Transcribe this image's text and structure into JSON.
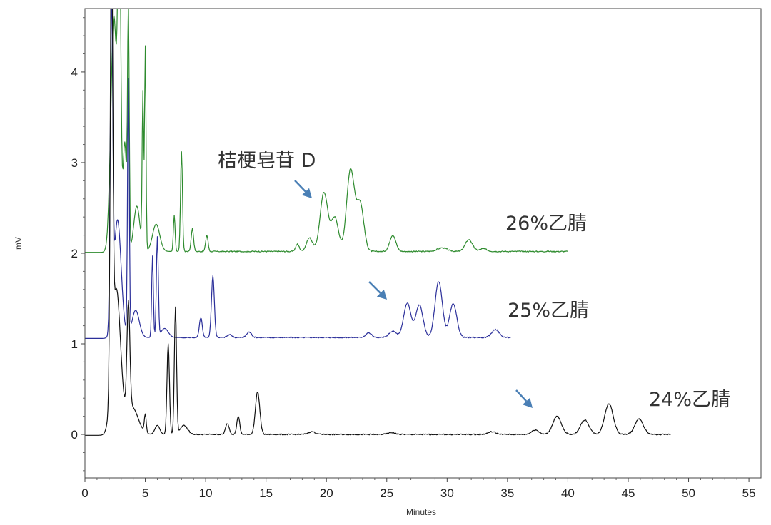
{
  "chart_data": {
    "type": "line",
    "xlabel": "Minutes",
    "ylabel": "mV",
    "xlim": [
      0,
      56
    ],
    "ylim": [
      -0.48,
      4.7
    ],
    "x_ticks": [
      0,
      5,
      10,
      15,
      20,
      25,
      30,
      35,
      40,
      45,
      50,
      55
    ],
    "y_ticks": [
      0,
      1,
      2,
      3,
      4
    ],
    "grid": false,
    "series": [
      {
        "name": "26%乙腈",
        "color": "#2e8b2e",
        "baseline": 2.02,
        "x_start": 0,
        "x_end": 40,
        "start_rise": 1.9,
        "peaks": [
          [
            2.4,
            2.6,
            0.25
          ],
          [
            2.85,
            3.5,
            0.12
          ],
          [
            3.3,
            1.2,
            0.15
          ],
          [
            3.6,
            2.6,
            0.07
          ],
          [
            4.3,
            0.5,
            0.25
          ],
          [
            4.8,
            1.7,
            0.06
          ],
          [
            5.0,
            2.25,
            0.06
          ],
          [
            5.9,
            0.3,
            0.3
          ],
          [
            7.4,
            0.4,
            0.07
          ],
          [
            8.0,
            1.1,
            0.08
          ],
          [
            8.9,
            0.25,
            0.1
          ],
          [
            10.1,
            0.18,
            0.1
          ],
          [
            17.6,
            0.08,
            0.15
          ],
          [
            18.6,
            0.15,
            0.25
          ],
          [
            19.8,
            0.65,
            0.32
          ],
          [
            20.7,
            0.37,
            0.3
          ],
          [
            22.0,
            0.9,
            0.32
          ],
          [
            22.8,
            0.52,
            0.3
          ],
          [
            25.5,
            0.18,
            0.25
          ],
          [
            29.6,
            0.04,
            0.4
          ],
          [
            31.8,
            0.13,
            0.3
          ],
          [
            33.0,
            0.03,
            0.3
          ]
        ]
      },
      {
        "name": "25%乙腈",
        "color": "#2b2f9a",
        "baseline": 1.07,
        "x_start": 0,
        "x_end": 35.3,
        "start_rise": 1.9,
        "peaks": [
          [
            2.2,
            3.5,
            0.1
          ],
          [
            2.7,
            1.3,
            0.3
          ],
          [
            3.6,
            2.8,
            0.07
          ],
          [
            4.2,
            0.3,
            0.3
          ],
          [
            5.6,
            0.9,
            0.07
          ],
          [
            6.0,
            1.1,
            0.08
          ],
          [
            6.6,
            0.1,
            0.3
          ],
          [
            9.6,
            0.22,
            0.12
          ],
          [
            10.6,
            0.68,
            0.12
          ],
          [
            12.0,
            0.03,
            0.2
          ],
          [
            13.6,
            0.06,
            0.2
          ],
          [
            23.5,
            0.05,
            0.25
          ],
          [
            25.5,
            0.07,
            0.3
          ],
          [
            26.7,
            0.38,
            0.3
          ],
          [
            27.7,
            0.36,
            0.3
          ],
          [
            29.3,
            0.62,
            0.3
          ],
          [
            30.5,
            0.37,
            0.3
          ],
          [
            34.0,
            0.09,
            0.3
          ]
        ]
      },
      {
        "name": "24%乙腈",
        "color": "#111111",
        "baseline": 0.0,
        "x_start": 0,
        "x_end": 48.5,
        "start_rise": 1.9,
        "peaks": [
          [
            2.2,
            5.0,
            0.1
          ],
          [
            2.6,
            1.6,
            0.35
          ],
          [
            3.6,
            1.2,
            0.12
          ],
          [
            3.9,
            0.3,
            0.5
          ],
          [
            5.0,
            0.2,
            0.08
          ],
          [
            6.0,
            0.1,
            0.2
          ],
          [
            6.9,
            1.0,
            0.1
          ],
          [
            7.5,
            1.4,
            0.09
          ],
          [
            8.2,
            0.1,
            0.3
          ],
          [
            11.8,
            0.12,
            0.15
          ],
          [
            12.7,
            0.2,
            0.12
          ],
          [
            14.3,
            0.47,
            0.18
          ],
          [
            18.8,
            0.03,
            0.3
          ],
          [
            25.4,
            0.02,
            0.3
          ],
          [
            33.7,
            0.03,
            0.3
          ],
          [
            37.3,
            0.05,
            0.3
          ],
          [
            39.1,
            0.2,
            0.35
          ],
          [
            41.4,
            0.16,
            0.35
          ],
          [
            43.4,
            0.34,
            0.35
          ],
          [
            45.9,
            0.17,
            0.35
          ]
        ]
      }
    ],
    "annotations": [
      {
        "text": "桔梗皂苷 D",
        "type": "label"
      },
      {
        "text": "26%乙腈",
        "type": "label"
      },
      {
        "text": "25%乙腈",
        "type": "label"
      },
      {
        "text": "24%乙腈",
        "type": "label"
      }
    ],
    "arrow_color": "#4a7fb5"
  }
}
